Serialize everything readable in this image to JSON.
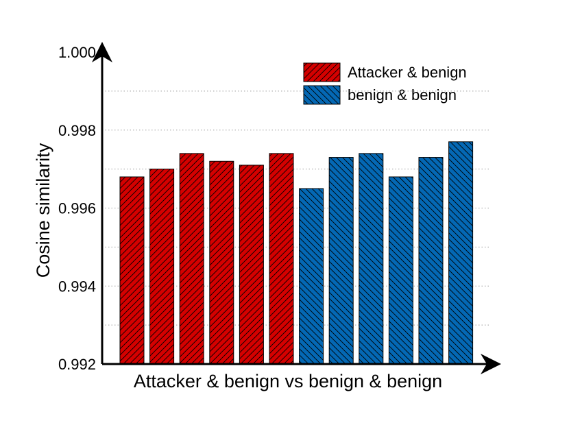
{
  "chart_data": {
    "type": "bar",
    "xlabel": "Attacker & benign vs benign & benign",
    "ylabel": "Cosine similarity",
    "ylim": [
      0.992,
      1.0
    ],
    "yticks": [
      "0.992",
      "0.994",
      "0.996",
      "0.998",
      "1.000"
    ],
    "grid": "horizontal dotted",
    "legend_position": "top-right",
    "series": [
      {
        "name": "Attacker & benign",
        "color": "#d40000",
        "hatch": "forward-diagonal",
        "values": [
          0.9968,
          0.997,
          0.9974,
          0.9972,
          0.9971,
          0.9974
        ]
      },
      {
        "name": "benign & benign",
        "color": "#0468b4",
        "hatch": "backward-diagonal",
        "values": [
          0.9965,
          0.9973,
          0.9974,
          0.9968,
          0.9973,
          0.9977
        ]
      }
    ]
  }
}
